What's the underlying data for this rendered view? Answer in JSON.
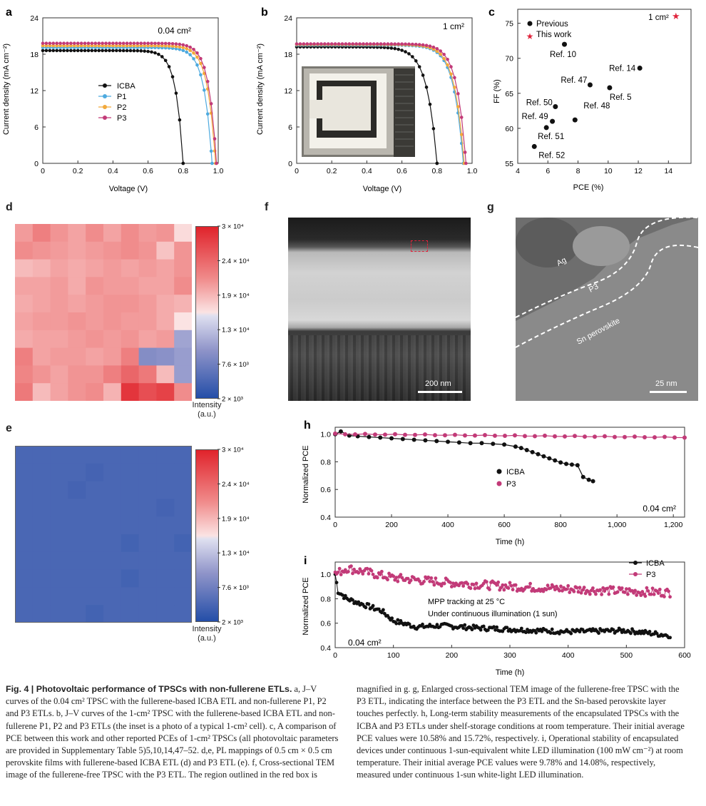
{
  "panels": {
    "a": {
      "letter": "a",
      "area": "0.04 cm²",
      "xlabel": "Voltage (V)",
      "ylabel": "Current density (mA cm⁻²)",
      "xticks": [
        "0",
        "0.2",
        "0.4",
        "0.6",
        "0.8",
        "1.0"
      ],
      "yticks": [
        "0",
        "6",
        "12",
        "18",
        "24"
      ],
      "legend": [
        "ICBA",
        "P1",
        "P2",
        "P3"
      ]
    },
    "b": {
      "letter": "b",
      "area": "1 cm²",
      "xlabel": "Voltage (V)",
      "ylabel": "Current density (mA cm⁻²)",
      "xticks": [
        "0",
        "0.2",
        "0.4",
        "0.6",
        "0.8",
        "1.0"
      ],
      "yticks": [
        "0",
        "6",
        "12",
        "18",
        "24"
      ]
    },
    "c": {
      "letter": "c",
      "xlabel": "PCE (%)",
      "ylabel": "FF (%)",
      "legend_prev": "Previous",
      "legend_this": "This work",
      "this_label": "1 cm²",
      "xticks": [
        "4",
        "6",
        "8",
        "10",
        "12",
        "14"
      ],
      "yticks": [
        "55",
        "60",
        "65",
        "70",
        "75"
      ],
      "refs": [
        "Ref. 10",
        "Ref. 14",
        "Ref. 47",
        "Ref. 5",
        "Ref. 50",
        "Ref. 49",
        "Ref. 48",
        "Ref. 51",
        "Ref. 52"
      ]
    },
    "d": {
      "letter": "d",
      "cbar_ticks": [
        "3 × 10⁴",
        "2.4 × 10⁴",
        "1.9 × 10⁴",
        "1.3 × 10⁴",
        "7.6 × 10³",
        "2 × 10³"
      ],
      "cbar_title1": "Intensity",
      "cbar_title2": "(a.u.)"
    },
    "e": {
      "letter": "e",
      "cbar_ticks": [
        "3 × 10⁴",
        "2.4 × 10⁴",
        "1.9 × 10⁴",
        "1.3 × 10⁴",
        "7.6 × 10³",
        "2 × 10³"
      ],
      "cbar_title1": "Intensity",
      "cbar_title2": "(a.u.)"
    },
    "f": {
      "letter": "f",
      "scalebar": "200 nm"
    },
    "g": {
      "letter": "g",
      "scalebar": "25 nm",
      "layers": [
        "Ag",
        "P3",
        "Sn perovskite"
      ]
    },
    "h": {
      "letter": "h",
      "xlabel": "Time (h)",
      "ylabel": "Normalized PCE",
      "area": "0.04 cm²",
      "xticks": [
        "0",
        "200",
        "400",
        "600",
        "800",
        "1,000",
        "1,200"
      ],
      "yticks": [
        "0.4",
        "0.6",
        "0.8",
        "1.0"
      ],
      "legend": [
        "ICBA",
        "P3"
      ]
    },
    "i": {
      "letter": "i",
      "xlabel": "Time (h)",
      "ylabel": "Normalized PCE",
      "area": "0.04 cm²",
      "xticks": [
        "0",
        "100",
        "200",
        "300",
        "400",
        "500",
        "600"
      ],
      "yticks": [
        "0.4",
        "0.6",
        "0.8",
        "1.0"
      ],
      "legend": [
        "ICBA",
        "P3"
      ],
      "note1": "MPP tracking at 25 °C",
      "note2": "Under continuous illumination (1 sun)"
    }
  },
  "colors": {
    "ICBA": "#111111",
    "P1": "#4eaadf",
    "P2": "#f2a93b",
    "P3": "#c23a78",
    "star": "#e0243c"
  },
  "chart_data": [
    {
      "type": "line",
      "id": "a",
      "xlabel": "Voltage (V)",
      "ylabel": "Current density (mA cm⁻²)",
      "xlim": [
        0,
        1.0
      ],
      "ylim": [
        0,
        24
      ],
      "series": [
        {
          "name": "ICBA",
          "jsc": 18.6,
          "voc": 0.8,
          "n": 1.6
        },
        {
          "name": "P1",
          "jsc": 19.1,
          "voc": 0.965,
          "n": 1.75
        },
        {
          "name": "P2",
          "jsc": 19.4,
          "voc": 0.985,
          "n": 1.75
        },
        {
          "name": "P3",
          "jsc": 19.8,
          "voc": 0.99,
          "n": 1.7
        }
      ]
    },
    {
      "type": "line",
      "id": "b",
      "xlabel": "Voltage (V)",
      "ylabel": "Current density (mA cm⁻²)",
      "xlim": [
        0,
        1.0
      ],
      "ylim": [
        0,
        24
      ],
      "series": [
        {
          "name": "ICBA",
          "jsc": 19.2,
          "voc": 0.8,
          "n": 2.2
        },
        {
          "name": "P1",
          "jsc": 19.5,
          "voc": 0.95,
          "n": 2.1
        },
        {
          "name": "P2",
          "jsc": 19.6,
          "voc": 0.955,
          "n": 2.1
        },
        {
          "name": "P3",
          "jsc": 19.7,
          "voc": 0.965,
          "n": 2.0
        }
      ]
    },
    {
      "type": "scatter",
      "id": "c",
      "xlabel": "PCE (%)",
      "ylabel": "FF (%)",
      "xlim": [
        4,
        15.5
      ],
      "ylim": [
        55,
        77
      ],
      "points": [
        {
          "label": "Ref. 10",
          "x": 7.1,
          "y": 72.0
        },
        {
          "label": "Ref. 14",
          "x": 12.1,
          "y": 68.6
        },
        {
          "label": "Ref. 47",
          "x": 8.8,
          "y": 66.2
        },
        {
          "label": "Ref. 5",
          "x": 10.1,
          "y": 65.8
        },
        {
          "label": "Ref. 50",
          "x": 6.5,
          "y": 63.1
        },
        {
          "label": "Ref. 49",
          "x": 6.3,
          "y": 61.0
        },
        {
          "label": "Ref. 48",
          "x": 7.8,
          "y": 61.2
        },
        {
          "label": "Ref. 51",
          "x": 5.9,
          "y": 60.1
        },
        {
          "label": "Ref. 52",
          "x": 5.1,
          "y": 57.4
        }
      ],
      "this_work": {
        "x": 14.5,
        "y": 75.9
      }
    },
    {
      "type": "heatmap",
      "id": "d",
      "rows": 10,
      "cols": 10,
      "vmin": 2000,
      "vmax": 30000,
      "values": [
        [
          20500,
          22500,
          21000,
          20000,
          21500,
          20000,
          21500,
          20500,
          21000,
          16500
        ],
        [
          21500,
          21000,
          20500,
          20000,
          20500,
          21000,
          21500,
          21000,
          18000,
          21000
        ],
        [
          18500,
          19000,
          20000,
          19500,
          20000,
          20500,
          20000,
          20500,
          20000,
          21000
        ],
        [
          20000,
          20000,
          20500,
          19500,
          21000,
          20500,
          20500,
          20000,
          20000,
          21500
        ],
        [
          19500,
          20000,
          20500,
          20000,
          20500,
          21000,
          21000,
          20500,
          19500,
          19000
        ],
        [
          20000,
          20500,
          20500,
          21000,
          20500,
          21000,
          20500,
          20500,
          19500,
          16000
        ],
        [
          19500,
          20000,
          20000,
          20500,
          21000,
          20500,
          21000,
          20000,
          20500,
          11000
        ],
        [
          22500,
          20000,
          20500,
          20500,
          20000,
          20500,
          22500,
          9000,
          9500,
          10500
        ],
        [
          22000,
          21000,
          20000,
          21000,
          21000,
          22500,
          24500,
          23000,
          18500,
          10500
        ],
        [
          23000,
          18500,
          20000,
          21000,
          21500,
          19000,
          28500,
          26500,
          27500,
          21500
        ]
      ]
    },
    {
      "type": "heatmap",
      "id": "e",
      "rows": 10,
      "cols": 10,
      "vmin": 2000,
      "vmax": 30000,
      "base": 4800,
      "spots": [
        {
          "r": 1,
          "c": 4,
          "v": 4400
        },
        {
          "r": 2,
          "c": 3,
          "v": 4400
        },
        {
          "r": 3,
          "c": 8,
          "v": 4400
        },
        {
          "r": 5,
          "c": 6,
          "v": 4300
        },
        {
          "r": 5,
          "c": 9,
          "v": 4300
        },
        {
          "r": 7,
          "c": 6,
          "v": 4300
        },
        {
          "r": 9,
          "c": 4,
          "v": 4300
        }
      ]
    },
    {
      "type": "line",
      "id": "h",
      "xlabel": "Time (h)",
      "ylabel": "Normalized PCE",
      "xlim": [
        0,
        1240
      ],
      "ylim": [
        0.4,
        1.05
      ],
      "series": [
        {
          "name": "ICBA",
          "x": [
            0,
            20,
            50,
            80,
            120,
            160,
            200,
            240,
            280,
            320,
            360,
            400,
            440,
            480,
            520,
            560,
            600,
            640,
            660,
            680,
            700,
            720,
            740,
            760,
            780,
            800,
            820,
            840,
            860,
            880,
            900,
            915
          ],
          "y": [
            1.0,
            1.02,
            0.99,
            0.985,
            0.98,
            0.975,
            0.97,
            0.965,
            0.96,
            0.955,
            0.95,
            0.945,
            0.94,
            0.935,
            0.935,
            0.93,
            0.925,
            0.91,
            0.9,
            0.885,
            0.87,
            0.855,
            0.84,
            0.825,
            0.81,
            0.795,
            0.785,
            0.78,
            0.775,
            0.69,
            0.67,
            0.66
          ]
        },
        {
          "name": "P3",
          "x": [
            0,
            1240
          ],
          "y": [
            1.0,
            0.975
          ]
        }
      ]
    },
    {
      "type": "line",
      "id": "i",
      "xlabel": "Time (h)",
      "ylabel": "Normalized PCE",
      "xlim": [
        0,
        600
      ],
      "ylim": [
        0.4,
        1.1
      ],
      "series": [
        {
          "name": "ICBA",
          "x": [
            0,
            5,
            20,
            50,
            80,
            100,
            140,
            180,
            250,
            300,
            400,
            500,
            575
          ],
          "y": [
            1.0,
            0.86,
            0.8,
            0.75,
            0.7,
            0.62,
            0.57,
            0.58,
            0.56,
            0.55,
            0.53,
            0.54,
            0.5
          ]
        },
        {
          "name": "P3",
          "x": [
            0,
            20,
            50,
            100,
            150,
            200,
            300,
            400,
            500,
            575
          ],
          "y": [
            1.0,
            1.05,
            1.02,
            0.97,
            0.95,
            0.93,
            0.9,
            0.88,
            0.86,
            0.85
          ]
        }
      ]
    }
  ],
  "caption": {
    "fig_label": "Fig. 4 | Photovoltaic performance of TPSCs with non-fullerene ETLs.",
    "left": " a, J–V curves of the 0.04 cm² TPSC with the fullerene-based ICBA ETL and non-fullerene P1, P2 and P3 ETLs. b, J–V curves of the 1-cm² TPSC with the fullerene-based ICBA ETL and non-fullerene P1, P2 and P3 ETLs (the inset is a photo of a typical 1-cm² cell). c, A comparison of PCE between this work and other reported PCEs of 1-cm² TPSCs (all photovoltaic parameters are provided in Supplementary Table 5)5,10,14,47–52. d,e, PL mappings of 0.5 cm × 0.5 cm perovskite films with fullerene-based ICBA ETL (d) and P3 ETL (e). f, Cross-sectional TEM image of the fullerene-free TPSC with the P3 ETL. The region outlined in the red box is",
    "right": "magnified in g. g, Enlarged cross-sectional TEM image of the fullerene-free TPSC with the P3 ETL, indicating the interface between the P3 ETL and the Sn-based perovskite layer touches perfectly. h, Long-term stability measurements of the encapsulated TPSCs with the ICBA and P3 ETLs under shelf-storage conditions at room temperature. Their initial average PCE values were 10.58% and 15.72%, respectively. i, Operational stability of encapsulated devices under continuous 1-sun-equivalent white LED illumination (100 mW cm⁻²) at room temperature. Their initial average PCE values were 9.78% and 14.08%, respectively, measured under continuous 1-sun white-light LED illumination."
  }
}
